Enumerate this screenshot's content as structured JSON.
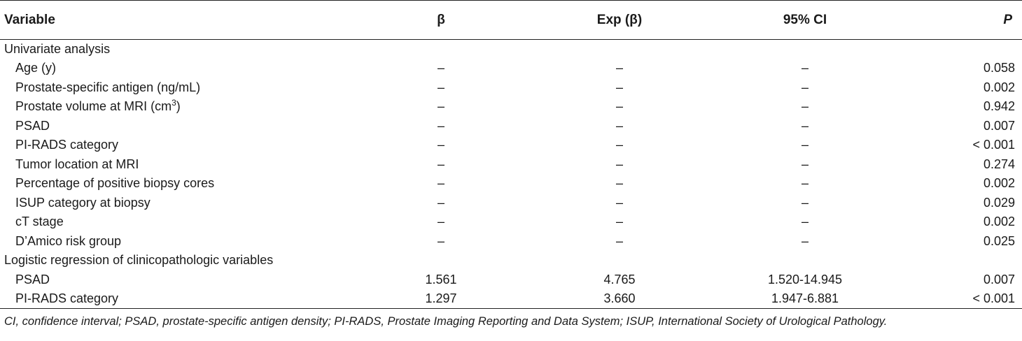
{
  "header": {
    "variable": "Variable",
    "beta": "β",
    "exp_beta": "Exp (β)",
    "ci": "95% CI",
    "p": "P"
  },
  "sections": [
    {
      "title": "Univariate analysis",
      "rows": [
        {
          "label": "Age (y)",
          "beta": "–",
          "exp": "–",
          "ci": "–",
          "p": "0.058"
        },
        {
          "label": "Prostate-specific antigen (ng/mL)",
          "beta": "–",
          "exp": "–",
          "ci": "–",
          "p": "0.002"
        },
        {
          "label": "Prostate volume at MRI (cm",
          "sup": "3",
          "label_suffix": ")",
          "beta": "–",
          "exp": "–",
          "ci": "–",
          "p": "0.942"
        },
        {
          "label": "PSAD",
          "beta": "–",
          "exp": "–",
          "ci": "–",
          "p": "0.007"
        },
        {
          "label": "PI-RADS category",
          "beta": "–",
          "exp": "–",
          "ci": "–",
          "p": "< 0.001"
        },
        {
          "label": "Tumor location at MRI",
          "beta": "–",
          "exp": "–",
          "ci": "–",
          "p": "0.274"
        },
        {
          "label": "Percentage of positive biopsy cores",
          "beta": "–",
          "exp": "–",
          "ci": "–",
          "p": "0.002"
        },
        {
          "label": "ISUP category at biopsy",
          "beta": "–",
          "exp": "–",
          "ci": "–",
          "p": "0.029"
        },
        {
          "label": "cT stage",
          "beta": "–",
          "exp": "–",
          "ci": "–",
          "p": "0.002"
        },
        {
          "label": "D’Amico risk group",
          "beta": "–",
          "exp": "–",
          "ci": "–",
          "p": "0.025"
        }
      ]
    },
    {
      "title": "Logistic regression of clinicopathologic variables",
      "rows": [
        {
          "label": "PSAD",
          "beta": "1.561",
          "exp": "4.765",
          "ci": "1.520-14.945",
          "p": "0.007"
        },
        {
          "label": "PI-RADS category",
          "beta": "1.297",
          "exp": "3.660",
          "ci": "1.947-6.881",
          "p": "< 0.001"
        }
      ]
    }
  ],
  "footnote": "CI, confidence interval; PSAD, prostate-specific antigen density; PI-RADS, Prostate Imaging Reporting and Data System; ISUP, International Society of Urological Pathology."
}
